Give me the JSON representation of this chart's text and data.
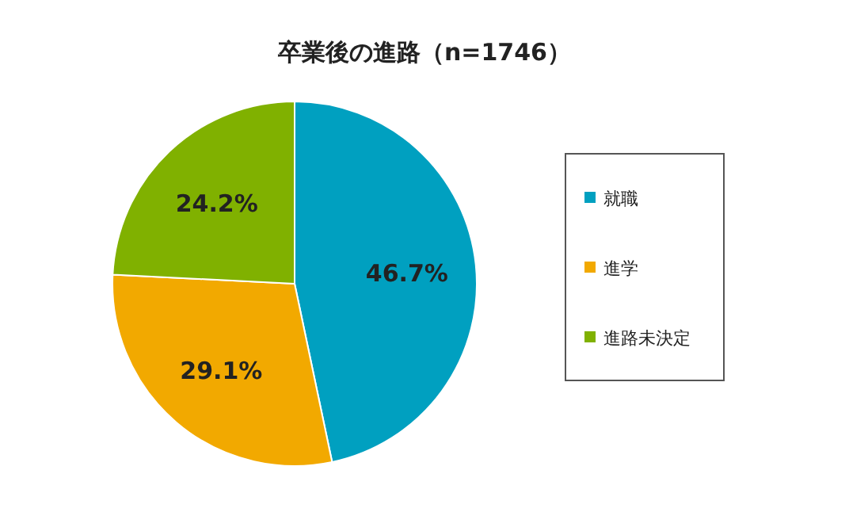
{
  "chart_data": {
    "type": "pie",
    "title": "卒業後の進路（n=1746）",
    "categories": [
      "就職",
      "進学",
      "進路未決定"
    ],
    "values": [
      46.7,
      29.1,
      24.2
    ],
    "colors": [
      "#00a0c0",
      "#f2a900",
      "#80b100"
    ],
    "value_labels": [
      "46.7%",
      "29.1%",
      "24.2%"
    ],
    "legend": "right"
  }
}
